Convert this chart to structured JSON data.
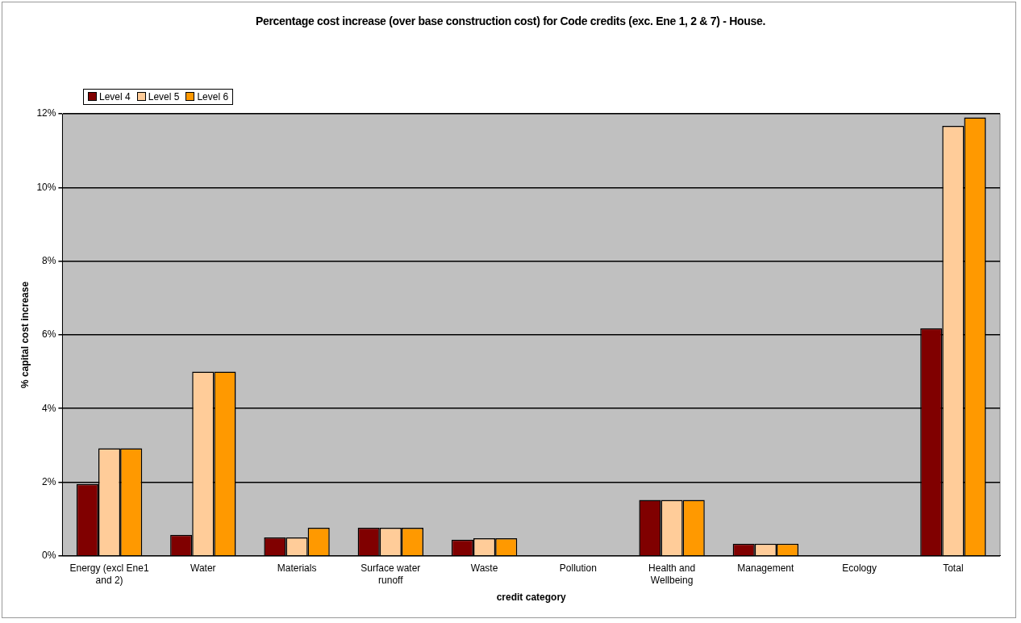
{
  "chart_data": {
    "type": "bar",
    "title": "Percentage cost increase (over base construction cost) for Code credits (exc. Ene 1, 2 & 7) - House.",
    "xlabel": "credit category",
    "ylabel": "% capital cost increase",
    "categories": [
      "Energy (excl Ene1 and 2)",
      "Water",
      "Materials",
      "Surface water runoff",
      "Waste",
      "Pollution",
      "Health and Wellbeing",
      "Management",
      "Ecology",
      "Total"
    ],
    "series": [
      {
        "name": "Level 4",
        "color": "#800000",
        "values": [
          1.95,
          0.57,
          0.5,
          0.76,
          0.44,
          0,
          1.52,
          0.33,
          0,
          6.18
        ]
      },
      {
        "name": "Level 5",
        "color": "#ffcc99",
        "values": [
          2.92,
          5.0,
          0.5,
          0.76,
          0.48,
          0,
          1.52,
          0.33,
          0,
          11.67
        ]
      },
      {
        "name": "Level 6",
        "color": "#ff9900",
        "values": [
          2.92,
          5.0,
          0.76,
          0.76,
          0.48,
          0,
          1.52,
          0.33,
          0,
          11.9
        ]
      }
    ],
    "ylim": [
      0,
      12
    ],
    "yticks": [
      {
        "value": 0,
        "label": "0%"
      },
      {
        "value": 2,
        "label": "2%"
      },
      {
        "value": 4,
        "label": "4%"
      },
      {
        "value": 6,
        "label": "6%"
      },
      {
        "value": 8,
        "label": "8%"
      },
      {
        "value": 10,
        "label": "10%"
      },
      {
        "value": 12,
        "label": "12%"
      }
    ],
    "grid": "y",
    "legend": "top left"
  }
}
